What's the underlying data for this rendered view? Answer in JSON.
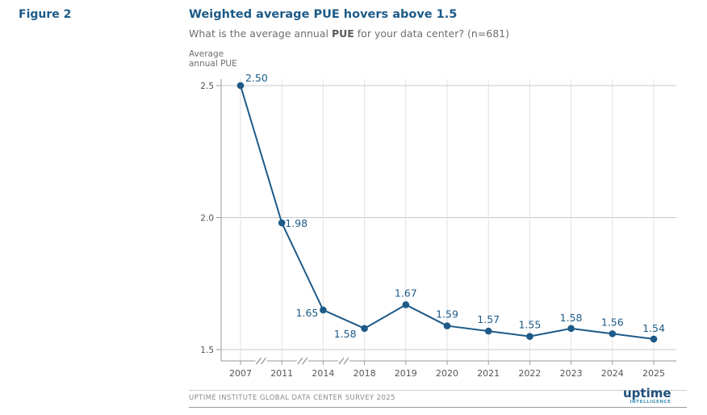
{
  "figure_label": "Figure 2",
  "logo": {
    "main": "uptime",
    "sub": "INTELLIGENCE"
  },
  "source": "UPTIME INSTITUTE GLOBAL DATA CENTER SURVEY 2025",
  "chart_data": {
    "type": "line",
    "title": "Weighted average PUE hovers above 1.5",
    "subtitle_pre": "What is the average annual ",
    "subtitle_bold": "PUE",
    "subtitle_post": " for your data center? (n=681)",
    "ylabel": "Average annual PUE",
    "xlabel": "",
    "categories": [
      "2007",
      "2011",
      "2014",
      "2018",
      "2019",
      "2020",
      "2021",
      "2022",
      "2023",
      "2024",
      "2025"
    ],
    "values": [
      2.5,
      1.98,
      1.65,
      1.58,
      1.67,
      1.59,
      1.57,
      1.55,
      1.58,
      1.56,
      1.54
    ],
    "value_labels": [
      "2.50",
      "1.98",
      "1.65",
      "1.58",
      "1.67",
      "1.59",
      "1.57",
      "1.55",
      "1.58",
      "1.56",
      "1.54"
    ],
    "yticks": [
      1.5,
      2.0,
      2.5
    ],
    "ytick_labels": [
      "1.5",
      "2.0",
      "2.5"
    ],
    "ylim": [
      1.5,
      2.5
    ],
    "axis_breaks_after": [
      "2007",
      "2011",
      "2014"
    ],
    "grid": true,
    "color": "#1d5a87"
  }
}
